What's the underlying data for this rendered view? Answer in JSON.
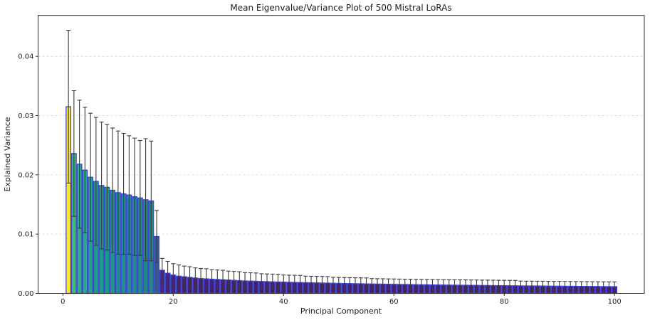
{
  "figure": {
    "title": "Mean Eigenvalue/Variance Plot of 500 Mistral LoRAs",
    "xlabel": "Principal Component",
    "ylabel": "Explained Variance"
  },
  "chart_data": {
    "type": "bar",
    "title": "Mean Eigenvalue/Variance Plot of 500 Mistral LoRAs",
    "xlabel": "Principal Component",
    "ylabel": "Explained Variance",
    "x_first": 1,
    "x_last": 100,
    "values": [
      0.0315,
      0.0236,
      0.0218,
      0.0208,
      0.0196,
      0.0189,
      0.0182,
      0.0179,
      0.0174,
      0.017,
      0.0168,
      0.0166,
      0.0163,
      0.0161,
      0.0158,
      0.0156,
      0.0096,
      0.0039,
      0.0034,
      0.0031,
      0.0029,
      0.0028,
      0.0027,
      0.0026,
      0.0025,
      0.00245,
      0.0024,
      0.00235,
      0.0023,
      0.00225,
      0.0022,
      0.00215,
      0.0021,
      0.00207,
      0.00204,
      0.00201,
      0.00198,
      0.00195,
      0.00192,
      0.0019,
      0.00187,
      0.00185,
      0.00183,
      0.00181,
      0.00179,
      0.00177,
      0.00175,
      0.00173,
      0.00171,
      0.00169,
      0.00167,
      0.00165,
      0.00163,
      0.00162,
      0.0016,
      0.00159,
      0.00157,
      0.00156,
      0.00154,
      0.00153,
      0.00151,
      0.0015,
      0.00149,
      0.00147,
      0.00146,
      0.00145,
      0.00143,
      0.00142,
      0.00141,
      0.0014,
      0.00139,
      0.00138,
      0.00137,
      0.00136,
      0.00135,
      0.00134,
      0.00133,
      0.00132,
      0.00131,
      0.0013,
      0.00129,
      0.00128,
      0.00127,
      0.00126,
      0.00126,
      0.00125,
      0.00124,
      0.00123,
      0.00122,
      0.00122,
      0.00121,
      0.0012,
      0.00119,
      0.00118,
      0.00118,
      0.00117,
      0.00116,
      0.00115,
      0.00114,
      0.00113
    ],
    "errors": [
      0.0129,
      0.0106,
      0.0108,
      0.0106,
      0.0108,
      0.0108,
      0.0107,
      0.0106,
      0.0105,
      0.0104,
      0.0102,
      0.01,
      0.0099,
      0.0097,
      0.0103,
      0.0101,
      0.0044,
      0.002,
      0.002,
      0.0019,
      0.0019,
      0.0018,
      0.0018,
      0.0017,
      0.0017,
      0.0017,
      0.0016,
      0.0016,
      0.0016,
      0.0015,
      0.0015,
      0.0015,
      0.0014,
      0.0014,
      0.0014,
      0.0013,
      0.0013,
      0.0013,
      0.0013,
      0.0012,
      0.0012,
      0.0012,
      0.0012,
      0.0011,
      0.0011,
      0.0011,
      0.0011,
      0.0011,
      0.001,
      0.001,
      0.001,
      0.001,
      0.001,
      0.001,
      0.001,
      0.0009,
      0.0009,
      0.0009,
      0.0009,
      0.0009,
      0.0009,
      0.0009,
      0.0009,
      0.0009,
      0.0009,
      0.0009,
      0.0009,
      0.0009,
      0.0009,
      0.0009,
      0.0009,
      0.0009,
      0.0009,
      0.0009,
      0.0009,
      0.0009,
      0.0009,
      0.0009,
      0.0009,
      0.0009,
      0.0009,
      0.0009,
      0.0008,
      0.0008,
      0.0008,
      0.0008,
      0.0008,
      0.0008,
      0.0008,
      0.0008,
      0.0008,
      0.0008,
      0.0008,
      0.0008,
      0.0008,
      0.0008,
      0.0008,
      0.0008,
      0.0008,
      0.0008
    ],
    "error_style": "symmetric, capped",
    "xticks": [
      0,
      20,
      40,
      60,
      80,
      100
    ],
    "yticks": [
      0,
      0.01,
      0.02,
      0.03,
      0.04
    ],
    "ytick_labels": [
      "0.00",
      "0.01",
      "0.02",
      "0.03",
      "0.04"
    ],
    "xlim": [
      -4.5,
      105.4
    ],
    "ylim": [
      0,
      0.0469
    ],
    "grid": {
      "axis": "y",
      "style": "dashed",
      "color": "#dcdcdc"
    },
    "legend": "none",
    "style": {
      "background": "#ffffff",
      "spine_color": "#2b2b2b",
      "text_color": "#1f1f1f",
      "bar_edge_color": "#3f46d6",
      "error_color": "#3a3a3a",
      "colormap": "viridis",
      "viridis_stops": [
        [
          0.0,
          "#440154"
        ],
        [
          0.1,
          "#482878"
        ],
        [
          0.2,
          "#3e4989"
        ],
        [
          0.3,
          "#31688e"
        ],
        [
          0.4,
          "#26828e"
        ],
        [
          0.5,
          "#1f9e89"
        ],
        [
          0.6,
          "#35b779"
        ],
        [
          0.7,
          "#6ece58"
        ],
        [
          0.8,
          "#b5de2b"
        ],
        [
          0.9,
          "#dfe318"
        ],
        [
          1.0,
          "#fde725"
        ]
      ],
      "color_value_divisor": 0.038,
      "color_t_min": 0.07,
      "first_bar_t": 1.0
    }
  }
}
